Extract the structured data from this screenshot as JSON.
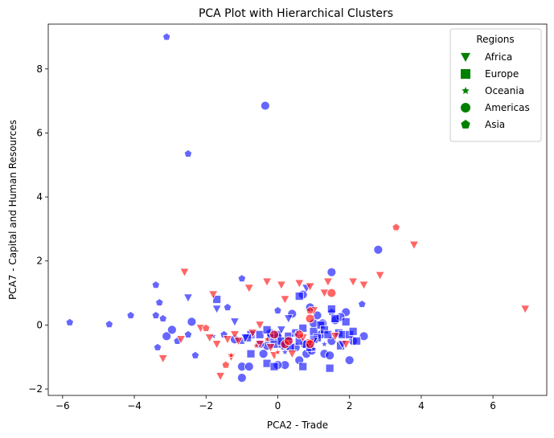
{
  "chart_data": {
    "type": "scatter",
    "title": "PCA Plot with Hierarchical Clusters",
    "xlabel": "PCA2 - Trade",
    "ylabel": "PCA7 - Capital and Human Resources",
    "xlim": [
      -6.4,
      7.5
    ],
    "ylim": [
      -2.2,
      9.4
    ],
    "xticks": [
      -6,
      -4,
      -2,
      0,
      2,
      4,
      6
    ],
    "yticks": [
      -2,
      0,
      2,
      4,
      6,
      8
    ],
    "grid": false,
    "legend": {
      "title": "Regions",
      "position": "top-right",
      "color": "#008000",
      "entries": [
        {
          "label": "Africa",
          "marker": "triangle-down"
        },
        {
          "label": "Europe",
          "marker": "square"
        },
        {
          "label": "Oceania",
          "marker": "star"
        },
        {
          "label": "Americas",
          "marker": "circle"
        },
        {
          "label": "Asia",
          "marker": "pentagon"
        }
      ]
    },
    "cluster_colors": {
      "blue": "#0000ff",
      "red": "#ff0000"
    },
    "series": [
      {
        "color": "blue",
        "marker": "pentagon",
        "points": [
          [
            -3.1,
            9.0
          ],
          [
            -2.5,
            5.35
          ],
          [
            -5.8,
            0.08
          ],
          [
            -4.7,
            0.02
          ],
          [
            -4.1,
            0.3
          ],
          [
            -3.4,
            1.25
          ],
          [
            -3.3,
            0.7
          ],
          [
            -3.4,
            0.3
          ],
          [
            -3.2,
            0.2
          ],
          [
            -3.35,
            -0.7
          ],
          [
            -2.8,
            -0.5
          ],
          [
            -2.5,
            -0.3
          ],
          [
            -2.3,
            -0.95
          ],
          [
            -1.4,
            0.55
          ],
          [
            -1.0,
            1.45
          ],
          [
            -1.0,
            -0.5
          ],
          [
            0.0,
            0.45
          ],
          [
            2.35,
            0.65
          ],
          [
            1.5,
            0.4
          ],
          [
            -1.5,
            -0.3
          ]
        ]
      },
      {
        "color": "blue",
        "marker": "circle",
        "points": [
          [
            -0.35,
            6.85
          ],
          [
            2.8,
            2.35
          ],
          [
            1.5,
            1.65
          ],
          [
            -3.1,
            -0.35
          ],
          [
            -2.95,
            -0.15
          ],
          [
            -2.4,
            0.1
          ],
          [
            -1.2,
            -0.45
          ],
          [
            -1.0,
            -1.3
          ],
          [
            -0.8,
            -1.3
          ],
          [
            -1.0,
            -1.65
          ],
          [
            -0.3,
            -0.65
          ],
          [
            -0.4,
            -0.9
          ],
          [
            -0.2,
            -0.25
          ],
          [
            0.0,
            -0.4
          ],
          [
            0.1,
            -0.6
          ],
          [
            0.3,
            -0.5
          ],
          [
            0.5,
            -0.7
          ],
          [
            0.6,
            -1.1
          ],
          [
            0.8,
            -0.9
          ],
          [
            0.4,
            0.35
          ],
          [
            0.7,
            0.95
          ],
          [
            0.9,
            0.55
          ],
          [
            1.1,
            0.3
          ],
          [
            1.2,
            -0.3
          ],
          [
            1.3,
            -0.9
          ],
          [
            1.5,
            -0.5
          ],
          [
            1.6,
            0.15
          ],
          [
            1.9,
            0.4
          ],
          [
            2.0,
            -1.1
          ],
          [
            2.1,
            -0.5
          ],
          [
            2.4,
            -0.35
          ],
          [
            1.0,
            0.05
          ],
          [
            0.2,
            -1.25
          ],
          [
            0.0,
            -1.25
          ],
          [
            -0.5,
            -0.6
          ],
          [
            0.75,
            -0.6
          ],
          [
            1.75,
            0.25
          ],
          [
            1.45,
            -0.95
          ],
          [
            0.95,
            -0.8
          ],
          [
            1.25,
            0.05
          ]
        ]
      },
      {
        "color": "blue",
        "marker": "square",
        "points": [
          [
            -1.7,
            0.8
          ],
          [
            -0.75,
            -0.3
          ],
          [
            -0.5,
            -0.3
          ],
          [
            -0.3,
            -0.15
          ],
          [
            -0.2,
            -0.4
          ],
          [
            -0.1,
            -0.6
          ],
          [
            0.0,
            -0.3
          ],
          [
            0.1,
            -0.5
          ],
          [
            0.2,
            -0.65
          ],
          [
            0.3,
            -0.35
          ],
          [
            0.5,
            -0.25
          ],
          [
            0.6,
            -0.5
          ],
          [
            0.7,
            -0.1
          ],
          [
            0.8,
            -0.6
          ],
          [
            0.9,
            -0.7
          ],
          [
            1.0,
            -0.2
          ],
          [
            1.1,
            -0.4
          ],
          [
            1.2,
            0.0
          ],
          [
            1.3,
            -0.15
          ],
          [
            1.4,
            -0.3
          ],
          [
            1.5,
            0.5
          ],
          [
            1.6,
            0.2
          ],
          [
            1.7,
            -0.25
          ],
          [
            1.8,
            -0.3
          ],
          [
            1.9,
            0.1
          ],
          [
            2.0,
            -0.3
          ],
          [
            2.1,
            -0.2
          ],
          [
            2.2,
            -0.5
          ],
          [
            0.6,
            0.9
          ],
          [
            1.45,
            -1.35
          ],
          [
            1.75,
            -0.65
          ],
          [
            0.7,
            -1.3
          ],
          [
            -0.75,
            -0.9
          ],
          [
            -0.3,
            -1.2
          ],
          [
            -0.1,
            -1.3
          ],
          [
            1.0,
            -0.45
          ],
          [
            0.35,
            -0.7
          ],
          [
            -0.85,
            -0.4
          ]
        ]
      },
      {
        "color": "blue",
        "marker": "triangle-down",
        "points": [
          [
            -2.5,
            0.85
          ],
          [
            -1.7,
            0.5
          ],
          [
            -1.2,
            0.1
          ],
          [
            -0.9,
            -0.4
          ],
          [
            0.3,
            0.2
          ],
          [
            0.8,
            1.15
          ],
          [
            1.0,
            -0.5
          ],
          [
            1.8,
            -0.6
          ],
          [
            0.1,
            -0.15
          ]
        ]
      },
      {
        "color": "blue",
        "marker": "star",
        "points": [
          [
            -1.8,
            -0.35
          ],
          [
            0.5,
            -0.3
          ],
          [
            1.0,
            -0.75
          ],
          [
            0.2,
            -0.85
          ],
          [
            1.3,
            -0.6
          ]
        ]
      },
      {
        "color": "red",
        "marker": "triangle-down",
        "points": [
          [
            6.9,
            0.5
          ],
          [
            3.8,
            2.5
          ],
          [
            2.85,
            1.55
          ],
          [
            2.1,
            1.35
          ],
          [
            2.4,
            1.25
          ],
          [
            1.4,
            1.35
          ],
          [
            0.9,
            1.2
          ],
          [
            0.6,
            1.3
          ],
          [
            0.1,
            1.25
          ],
          [
            -0.3,
            1.35
          ],
          [
            -0.8,
            1.15
          ],
          [
            -1.8,
            0.95
          ],
          [
            -2.6,
            1.65
          ],
          [
            -3.2,
            -1.05
          ],
          [
            -2.15,
            -0.1
          ],
          [
            -1.9,
            -0.4
          ],
          [
            -1.7,
            -0.6
          ],
          [
            -1.6,
            -1.6
          ],
          [
            -1.2,
            -0.3
          ],
          [
            -1.1,
            -0.5
          ],
          [
            -0.7,
            -0.25
          ],
          [
            -0.5,
            -0.6
          ],
          [
            -0.2,
            -0.7
          ],
          [
            0.2,
            0.8
          ],
          [
            0.4,
            -0.9
          ],
          [
            0.7,
            -0.4
          ],
          [
            1.0,
            0.45
          ],
          [
            1.3,
            1.0
          ],
          [
            1.9,
            -0.6
          ],
          [
            -0.5,
            0.0
          ],
          [
            -2.7,
            -0.45
          ],
          [
            -0.1,
            -0.95
          ],
          [
            0.9,
            -0.55
          ],
          [
            -1.4,
            -0.45
          ],
          [
            1.6,
            -0.35
          ],
          [
            -1.3,
            -1.0
          ]
        ]
      },
      {
        "color": "red",
        "marker": "pentagon",
        "points": [
          [
            3.3,
            3.05
          ],
          [
            -2.0,
            -0.1
          ],
          [
            0.9,
            0.45
          ],
          [
            -1.45,
            -1.25
          ]
        ]
      },
      {
        "color": "red",
        "marker": "circle",
        "points": [
          [
            1.5,
            1.0
          ],
          [
            0.9,
            0.2
          ],
          [
            0.2,
            -0.6
          ],
          [
            0.3,
            -0.5
          ],
          [
            -0.1,
            -0.3
          ],
          [
            0.6,
            -0.3
          ],
          [
            0.9,
            -0.6
          ]
        ]
      },
      {
        "color": "red",
        "marker": "star",
        "points": [
          [
            -1.3,
            -0.95
          ],
          [
            -0.6,
            -0.65
          ],
          [
            -0.3,
            -0.45
          ],
          [
            0.0,
            -0.85
          ]
        ]
      }
    ]
  }
}
